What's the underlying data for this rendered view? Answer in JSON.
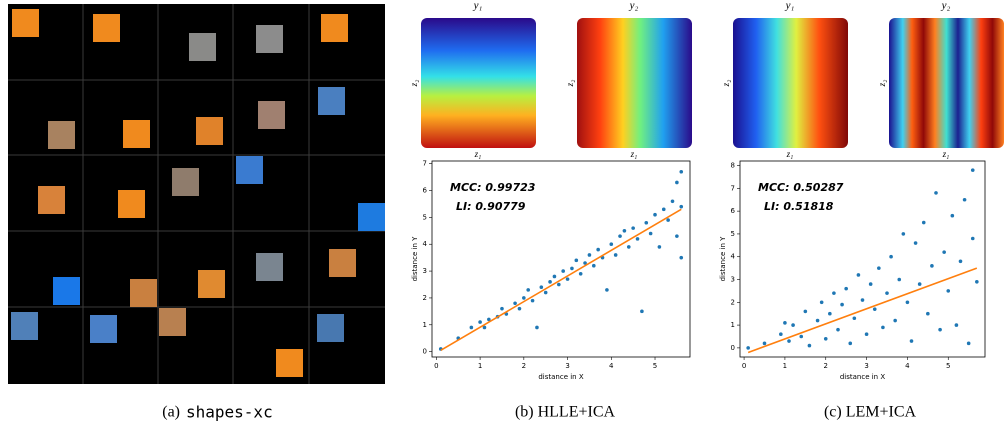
{
  "captions": [
    {
      "prefix": "(a)",
      "text": "shapes-xc"
    },
    {
      "text": "(b) HLLE+ICA"
    },
    {
      "text": "(c) LEM+ICA"
    }
  ],
  "embeddings": [
    {
      "title": "y₁",
      "xlabel": "z₁",
      "ylabel": "z₂"
    },
    {
      "title": "y₂",
      "xlabel": "z₁",
      "ylabel": "z₂"
    },
    {
      "title": "y₁",
      "xlabel": "z₁",
      "ylabel": "z₂"
    },
    {
      "title": "y₂",
      "xlabel": "z₁",
      "ylabel": "z₂"
    }
  ],
  "chart_data": [
    {
      "type": "scatter",
      "color": "#1f77b4",
      "fit_color": "#ff7f0e",
      "annotations": [
        "MCC: 0.99723",
        "LI: 0.90779"
      ],
      "xlabel": "distance in X",
      "ylabel": "distance in Y",
      "xlim": [
        -0.1,
        5.8
      ],
      "ylim": [
        -0.2,
        7.1
      ],
      "xticks": [
        0,
        1,
        2,
        3,
        4,
        5
      ],
      "yticks": [
        0,
        1,
        2,
        3,
        4,
        5,
        6,
        7
      ],
      "x": [
        0.1,
        0.5,
        0.8,
        1.0,
        1.1,
        1.2,
        1.4,
        1.5,
        1.6,
        1.8,
        1.9,
        2.0,
        2.1,
        2.2,
        2.3,
        2.4,
        2.5,
        2.6,
        2.7,
        2.8,
        2.9,
        3.0,
        3.1,
        3.2,
        3.3,
        3.4,
        3.5,
        3.6,
        3.7,
        3.8,
        3.9,
        4.0,
        4.1,
        4.2,
        4.3,
        4.4,
        4.5,
        4.6,
        4.7,
        4.8,
        4.9,
        5.0,
        5.1,
        5.2,
        5.3,
        5.4,
        5.5,
        5.5,
        5.6,
        5.6,
        5.6
      ],
      "values": [
        0.1,
        0.5,
        0.9,
        1.1,
        0.9,
        1.2,
        1.3,
        1.6,
        1.4,
        1.8,
        1.6,
        2.0,
        2.3,
        1.9,
        0.9,
        2.4,
        2.2,
        2.6,
        2.8,
        2.5,
        3.0,
        2.7,
        3.1,
        3.4,
        2.9,
        3.3,
        3.6,
        3.2,
        3.8,
        3.5,
        2.3,
        4.0,
        3.6,
        4.3,
        4.5,
        3.9,
        4.6,
        4.2,
        1.5,
        4.8,
        4.4,
        5.1,
        3.9,
        5.3,
        4.9,
        5.6,
        6.3,
        4.3,
        6.7,
        3.5,
        5.4
      ],
      "fit_line": {
        "x": [
          0.1,
          5.6
        ],
        "y": [
          0.05,
          5.3
        ]
      }
    },
    {
      "type": "scatter",
      "color": "#1f77b4",
      "fit_color": "#ff7f0e",
      "annotations": [
        "MCC: 0.50287",
        "LI: 0.51818"
      ],
      "xlabel": "distance in X",
      "ylabel": "distance in Y",
      "xlim": [
        -0.1,
        5.9
      ],
      "ylim": [
        -0.4,
        8.2
      ],
      "xticks": [
        0,
        1,
        2,
        3,
        4,
        5
      ],
      "yticks": [
        0,
        1,
        2,
        3,
        4,
        5,
        6,
        7,
        8
      ],
      "x": [
        0.1,
        0.5,
        0.9,
        1.0,
        1.1,
        1.2,
        1.4,
        1.5,
        1.6,
        1.8,
        1.9,
        2.0,
        2.1,
        2.2,
        2.3,
        2.4,
        2.5,
        2.6,
        2.7,
        2.8,
        2.9,
        3.0,
        3.1,
        3.2,
        3.3,
        3.4,
        3.5,
        3.6,
        3.7,
        3.8,
        3.9,
        4.0,
        4.1,
        4.2,
        4.3,
        4.4,
        4.5,
        4.6,
        4.7,
        4.8,
        4.9,
        5.0,
        5.1,
        5.2,
        5.3,
        5.4,
        5.5,
        5.6,
        5.6,
        5.7
      ],
      "values": [
        0.0,
        0.2,
        0.6,
        1.1,
        0.3,
        1.0,
        0.5,
        1.6,
        0.1,
        1.2,
        2.0,
        0.4,
        1.5,
        2.4,
        0.8,
        1.9,
        2.6,
        0.2,
        1.3,
        3.2,
        2.1,
        0.6,
        2.8,
        1.7,
        3.5,
        0.9,
        2.4,
        4.0,
        1.2,
        3.0,
        5.0,
        2.0,
        0.3,
        4.6,
        2.8,
        5.5,
        1.5,
        3.6,
        6.8,
        0.8,
        4.2,
        2.5,
        5.8,
        1.0,
        3.8,
        6.5,
        0.2,
        7.8,
        4.8,
        2.9
      ],
      "fit_line": {
        "x": [
          0.1,
          5.7
        ],
        "y": [
          -0.2,
          3.5
        ]
      }
    }
  ]
}
